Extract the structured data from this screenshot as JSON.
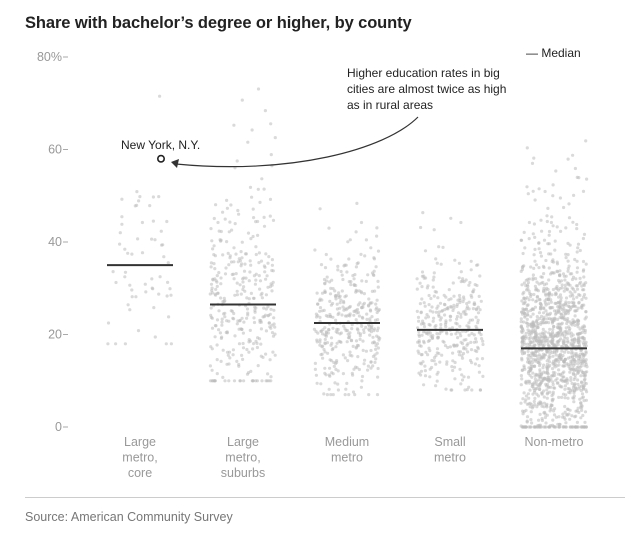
{
  "title": "Share with bachelor’s degree or higher, by county",
  "source": "Source: American Community Survey",
  "legend": {
    "label": "— Median"
  },
  "annotation": {
    "lines": [
      "Higher education rates in big",
      "cities are almost twice as high",
      "as in rural areas"
    ]
  },
  "highlight": {
    "label": "New York, N.Y.",
    "value": 58
  },
  "colors": {
    "dot": "#bbbbbb",
    "median": "#333333",
    "text": "#222222",
    "axis": "#999999"
  },
  "chart_data": {
    "type": "scatter",
    "title": "Share with bachelor’s degree or higher, by county",
    "ylim": [
      0,
      80
    ],
    "yticks": [
      0,
      20,
      40,
      60,
      80
    ],
    "ytick_labels": [
      "0",
      "20",
      "40",
      "60",
      "80%"
    ],
    "grid": false,
    "legend_position": "top-right",
    "categories": [
      {
        "name": "Large metro, core",
        "label_lines": [
          "Large",
          "metro,",
          "core"
        ],
        "median": 35,
        "range": [
          18,
          72
        ],
        "n": 60
      },
      {
        "name": "Large metro, suburbs",
        "label_lines": [
          "Large",
          "metro,",
          "suburbs"
        ],
        "median": 26.5,
        "range": [
          10,
          74
        ],
        "n": 330
      },
      {
        "name": "Medium metro",
        "label_lines": [
          "Medium",
          "metro"
        ],
        "median": 22.5,
        "range": [
          7,
          55
        ],
        "n": 360
      },
      {
        "name": "Small metro",
        "label_lines": [
          "Small",
          "metro"
        ],
        "median": 21,
        "range": [
          8,
          47
        ],
        "n": 330
      },
      {
        "name": "Non-metro",
        "label_lines": [
          "Non-metro"
        ],
        "median": 17,
        "range": [
          0,
          62
        ],
        "n": 1300
      }
    ]
  }
}
